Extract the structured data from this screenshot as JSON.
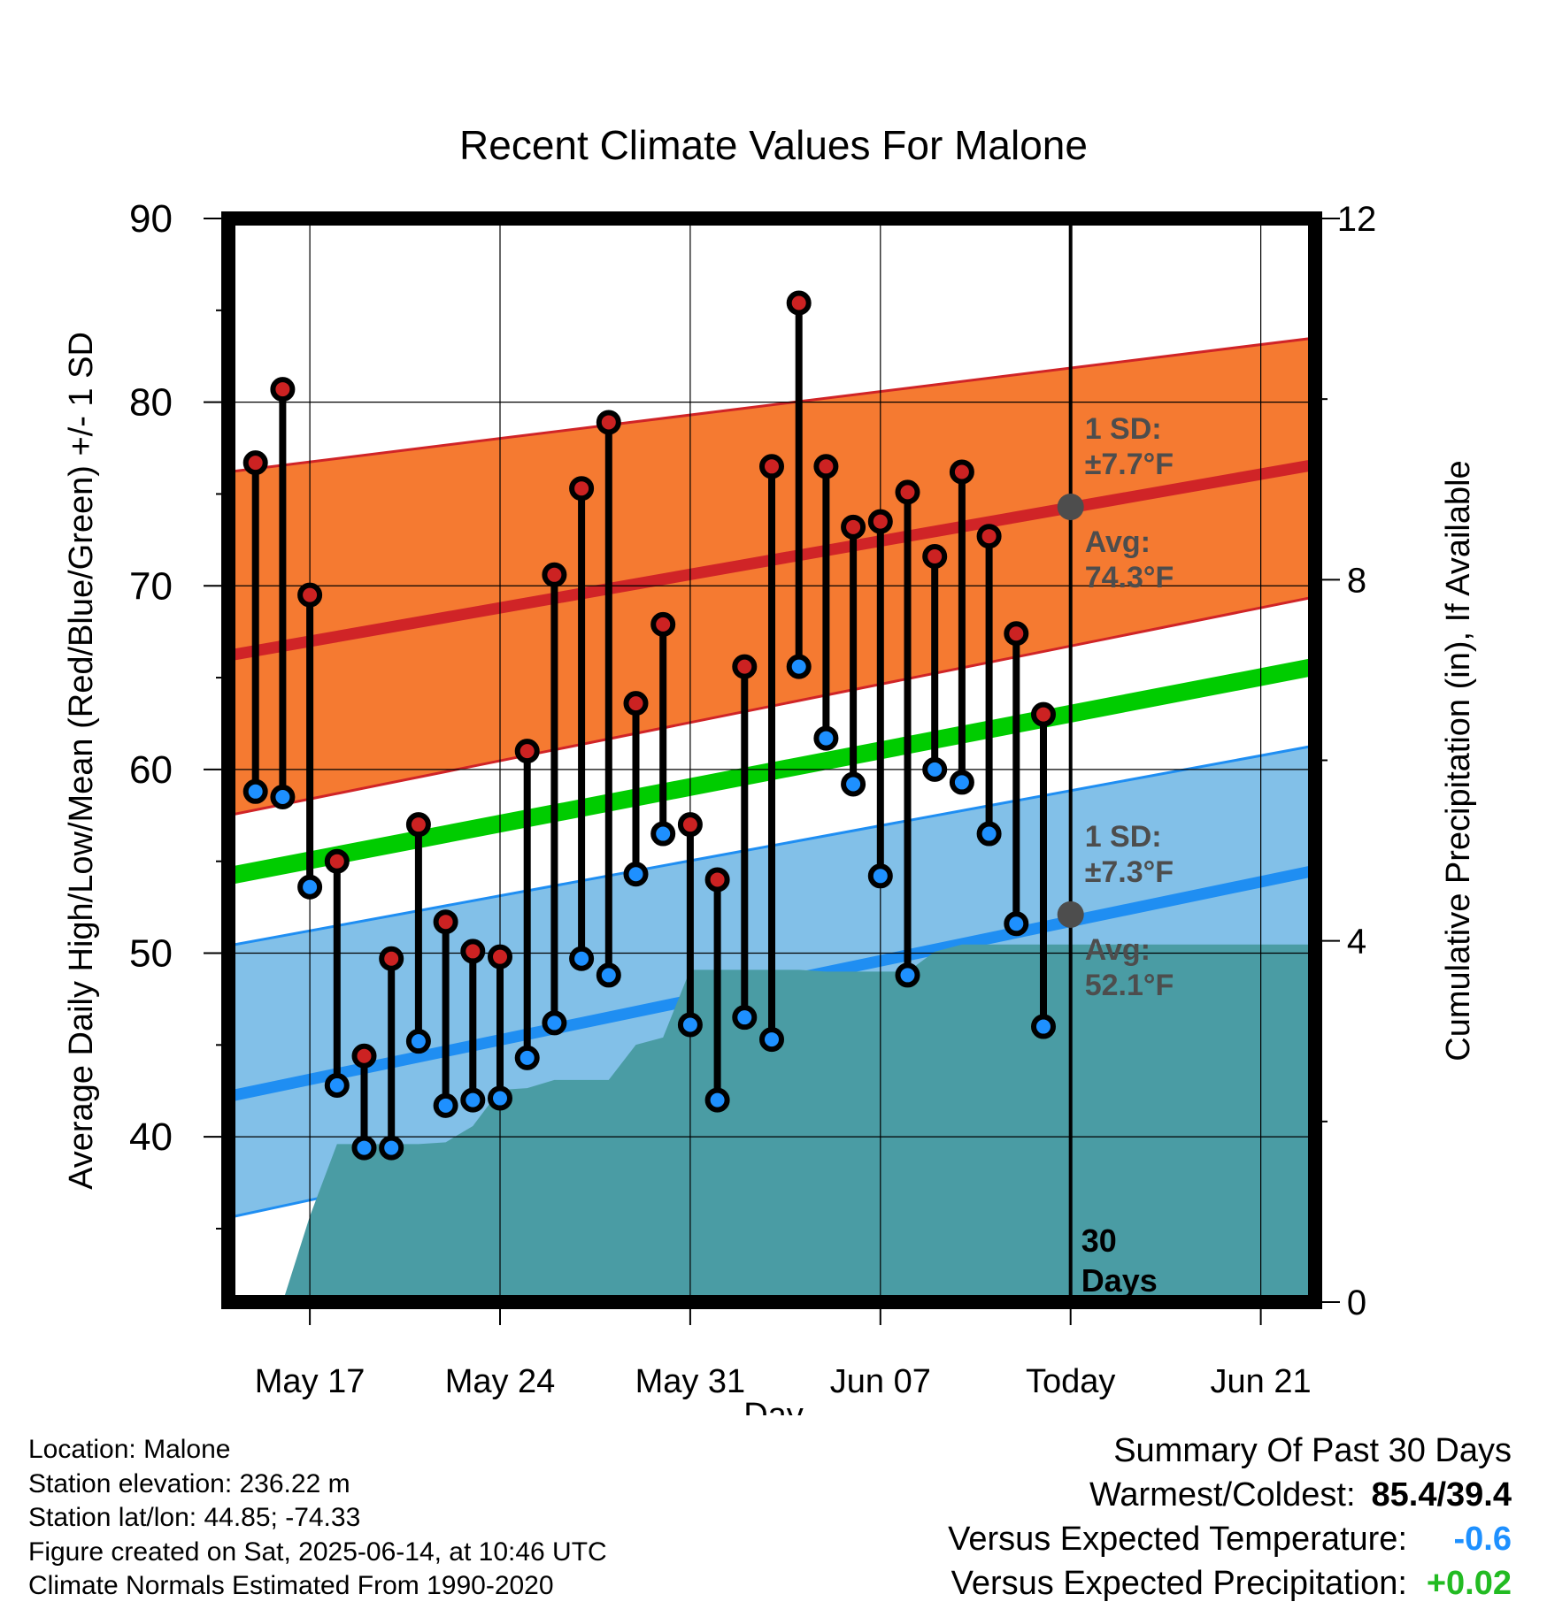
{
  "chart_data": {
    "type": "line",
    "title": "Recent Climate Values For Malone",
    "xlabel": "Day",
    "ylabel_left": "Average Daily High/Low/Mean (Red/Blue/Green) +/- 1 SD",
    "ylabel_right": "Cumulative Precipitation (in), If Available",
    "x_range": [
      "2025-05-14",
      "2025-06-23"
    ],
    "ylim_left": [
      31,
      90
    ],
    "ylim_right": [
      0,
      12
    ],
    "x_ticks": [
      {
        "date": "2025-05-17",
        "label": "May 17"
      },
      {
        "date": "2025-05-24",
        "label": "May 24"
      },
      {
        "date": "2025-05-31",
        "label": "May 31"
      },
      {
        "date": "2025-06-07",
        "label": "Jun 07"
      },
      {
        "date": "2025-06-14",
        "label": "Today"
      },
      {
        "date": "2025-06-21",
        "label": "Jun 21"
      }
    ],
    "y_ticks_left": [
      "90",
      "80",
      "70",
      "60",
      "50",
      "40"
    ],
    "y_ticks_right": [
      "12",
      "8",
      "4",
      "0"
    ],
    "grid": true,
    "today": "2025-06-14",
    "today_label": "30",
    "today_label_2": "Days",
    "normals": {
      "x": [
        "2025-05-14",
        "2025-06-23"
      ],
      "high_mean": [
        66.2,
        76.6
      ],
      "high_upper": [
        76.2,
        83.5
      ],
      "high_lower": [
        57.5,
        69.4
      ],
      "mean": [
        54.2,
        65.6
      ],
      "low_mean": [
        42.2,
        54.5
      ],
      "low_upper": [
        50.4,
        61.3
      ],
      "low_lower": [
        35.6,
        48.3
      ]
    },
    "observations": {
      "dates": [
        "2025-05-15",
        "2025-05-16",
        "2025-05-17",
        "2025-05-18",
        "2025-05-19",
        "2025-05-20",
        "2025-05-21",
        "2025-05-22",
        "2025-05-23",
        "2025-05-24",
        "2025-05-25",
        "2025-05-26",
        "2025-05-27",
        "2025-05-28",
        "2025-05-29",
        "2025-05-30",
        "2025-05-31",
        "2025-06-01",
        "2025-06-02",
        "2025-06-03",
        "2025-06-04",
        "2025-06-05",
        "2025-06-06",
        "2025-06-07",
        "2025-06-08",
        "2025-06-09",
        "2025-06-10",
        "2025-06-11",
        "2025-06-12",
        "2025-06-13"
      ],
      "high": [
        76.7,
        80.7,
        69.5,
        55.0,
        44.4,
        49.7,
        57.0,
        51.7,
        50.1,
        49.8,
        61.0,
        70.6,
        75.3,
        78.9,
        63.6,
        67.9,
        57.0,
        54.0,
        65.6,
        76.5,
        85.4,
        76.5,
        73.2,
        73.5,
        75.1,
        71.6,
        76.2,
        72.7,
        67.4,
        63.0
      ],
      "low": [
        58.8,
        58.5,
        53.6,
        42.8,
        39.4,
        39.4,
        45.2,
        41.7,
        42.0,
        42.1,
        44.3,
        46.2,
        49.7,
        48.8,
        54.3,
        56.5,
        46.1,
        42.0,
        46.5,
        45.3,
        65.6,
        61.7,
        59.2,
        54.2,
        48.8,
        60.0,
        59.3,
        56.5,
        51.6,
        46.0
      ]
    },
    "precipitation": {
      "dates": [
        "2025-05-14",
        "2025-05-15",
        "2025-05-16",
        "2025-05-17",
        "2025-05-18",
        "2025-05-19",
        "2025-05-20",
        "2025-05-21",
        "2025-05-22",
        "2025-05-23",
        "2025-05-24",
        "2025-05-25",
        "2025-05-26",
        "2025-05-27",
        "2025-05-28",
        "2025-05-29",
        "2025-05-30",
        "2025-05-31",
        "2025-06-01",
        "2025-06-02",
        "2025-06-03",
        "2025-06-04",
        "2025-06-05",
        "2025-06-06",
        "2025-06-07",
        "2025-06-08",
        "2025-06-09",
        "2025-06-10",
        "2025-06-11",
        "2025-06-12",
        "2025-06-13",
        "2025-06-23"
      ],
      "cumulative": [
        null,
        null,
        0.0,
        0.95,
        1.75,
        1.75,
        1.75,
        1.75,
        1.77,
        1.95,
        2.35,
        2.37,
        2.46,
        2.46,
        2.46,
        2.85,
        2.93,
        3.68,
        3.68,
        3.68,
        3.68,
        3.68,
        3.66,
        3.66,
        3.66,
        3.66,
        3.88,
        3.96,
        3.96,
        3.96,
        3.96,
        3.96
      ]
    },
    "annotations": {
      "high_sd_label": "1 SD:",
      "high_sd_value": "±7.7°F",
      "high_avg_label": "Avg:",
      "high_avg_value": "74.3°F",
      "high_avg_point": 74.3,
      "low_sd_label": "1 SD:",
      "low_sd_value": "±7.3°F",
      "low_avg_label": "Avg:",
      "low_avg_value": "52.1°F",
      "low_avg_point": 52.1
    },
    "colors": {
      "high_band": "#f57a31",
      "high_line": "#d02427",
      "mean_line": "#00cc00",
      "low_band": "#82c0e8",
      "low_line": "#1f8ef2",
      "high_point": "#cc2222",
      "low_point": "#1e90ff",
      "precip": "#4a9ca4",
      "annotation_text": "#4d4d4d"
    }
  },
  "footer": {
    "location": "Location: Malone",
    "elevation": "Station elevation: 236.22 m",
    "latlon": "Station lat/lon: 44.85; -74.33",
    "created": "Figure created on Sat, 2025-06-14, at 10:46 UTC",
    "normals": "Climate Normals Estimated From 1990-2020"
  },
  "summary": {
    "title": "Summary Of Past 30 Days",
    "warmest_label": "Warmest/Coldest:",
    "warmest_value": "85.4/39.4",
    "temp_label": "Versus Expected Temperature:",
    "temp_value": "-0.6",
    "temp_color": "#1e90ff",
    "precip_label": "Versus Expected Precipitation:",
    "precip_value": "+0.02",
    "precip_color": "#22bb22"
  }
}
